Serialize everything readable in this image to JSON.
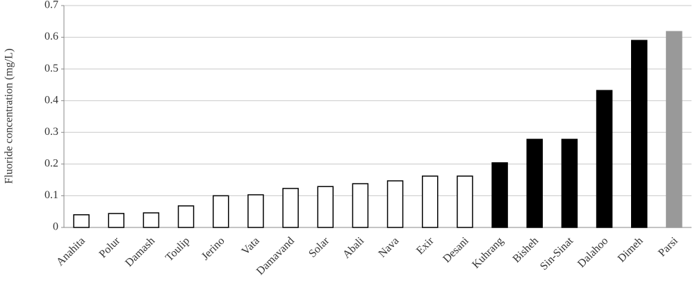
{
  "chart_data": {
    "type": "bar",
    "y_label": "Fluoride concentration (mg/L)",
    "categories": [
      "Anahita",
      "Polur",
      "Damash",
      "Toulip",
      "Jerino",
      "Vata",
      "Damavand",
      "Solar",
      "Abali",
      "Nava",
      "Exir",
      "Desani",
      "Kuhrang",
      "Bisheh",
      "Sin-Sinat",
      "Dalahoo",
      "Dimeh",
      "Parsi"
    ],
    "values": [
      0.04,
      0.044,
      0.046,
      0.068,
      0.1,
      0.103,
      0.123,
      0.129,
      0.138,
      0.147,
      0.162,
      0.162,
      0.204,
      0.278,
      0.278,
      0.432,
      0.59,
      0.618
    ],
    "colors": [
      "#ffffff",
      "#ffffff",
      "#ffffff",
      "#ffffff",
      "#ffffff",
      "#ffffff",
      "#ffffff",
      "#ffffff",
      "#ffffff",
      "#ffffff",
      "#ffffff",
      "#ffffff",
      "#000000",
      "#000000",
      "#000000",
      "#000000",
      "#000000",
      "#999999"
    ],
    "ylim": [
      0,
      0.7
    ],
    "yticks": [
      0,
      0.1,
      0.2,
      0.3,
      0.4,
      0.5,
      0.6,
      0.7
    ],
    "grid": true
  }
}
